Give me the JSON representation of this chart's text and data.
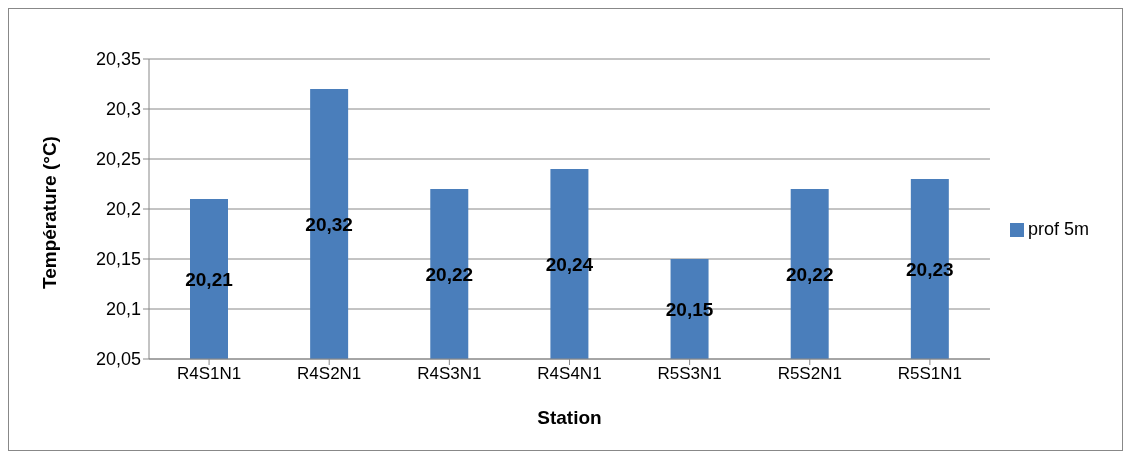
{
  "chart_data": {
    "type": "bar",
    "xlabel": "Station",
    "ylabel": "Température (°C)",
    "categories": [
      "R4S1N1",
      "R4S2N1",
      "R4S3N1",
      "R4S4N1",
      "R5S3N1",
      "R5S2N1",
      "R5S1N1"
    ],
    "series": [
      {
        "name": "prof 5m",
        "color": "#4a7ebb",
        "values": [
          20.21,
          20.32,
          20.22,
          20.24,
          20.15,
          20.22,
          20.23
        ],
        "value_labels": [
          "20,21",
          "20,32",
          "20,22",
          "20,24",
          "20,15",
          "20,22",
          "20,23"
        ]
      }
    ],
    "ylim": [
      20.05,
      20.35
    ],
    "yticks": [
      {
        "value": 20.05,
        "label": "20,05"
      },
      {
        "value": 20.1,
        "label": "20,1"
      },
      {
        "value": 20.15,
        "label": "20,15"
      },
      {
        "value": 20.2,
        "label": "20,2"
      },
      {
        "value": 20.25,
        "label": "20,25"
      },
      {
        "value": 20.3,
        "label": "20,3"
      },
      {
        "value": 20.35,
        "label": "20,35"
      }
    ],
    "grid": "y",
    "legend": "right"
  }
}
